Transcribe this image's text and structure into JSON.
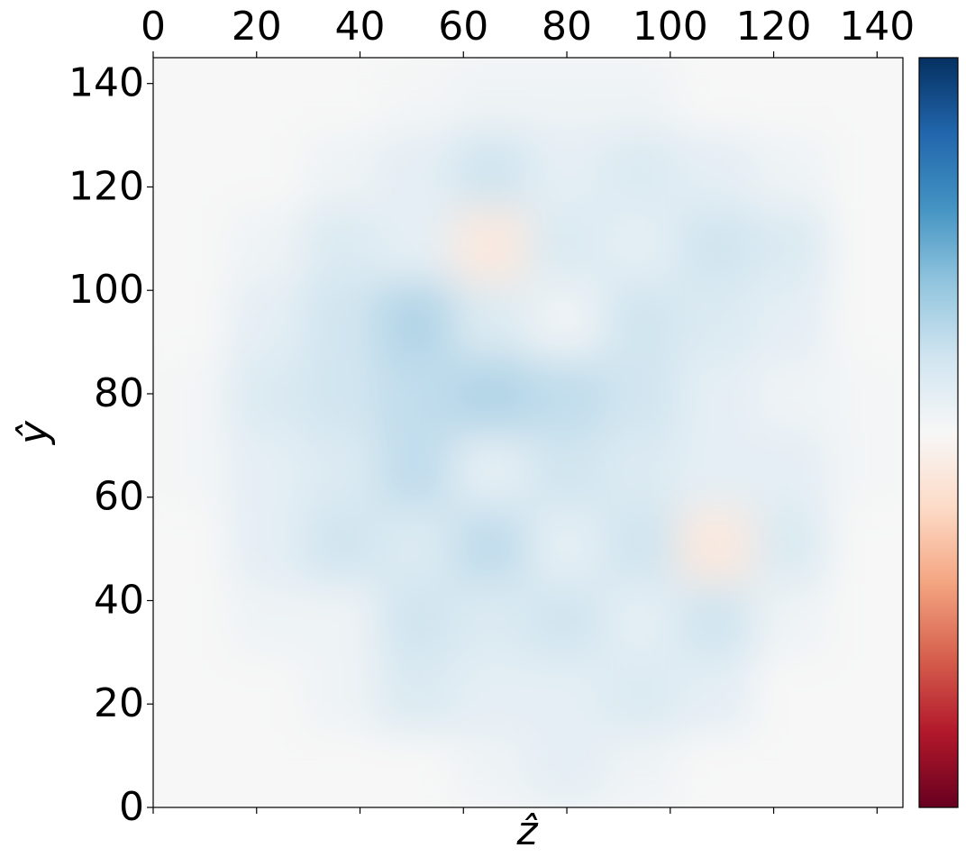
{
  "chart_data": {
    "type": "heatmap",
    "x_label": "ẑ",
    "y_label": "ŷ",
    "xlim": [
      0,
      145
    ],
    "ylim": [
      0,
      145
    ],
    "xticks": [
      0,
      20,
      40,
      60,
      80,
      100,
      120,
      140
    ],
    "yticks": [
      0,
      20,
      40,
      60,
      80,
      100,
      120,
      140
    ],
    "xbins": [
      0,
      14.5,
      29,
      43.5,
      58,
      72.5,
      87,
      101.5,
      116,
      130.5,
      145
    ],
    "ybins": [
      0,
      14.5,
      29,
      43.5,
      58,
      72.5,
      87,
      101.5,
      116,
      130.5,
      145
    ],
    "colormap": "RdBu",
    "zlim": [
      -1,
      1
    ],
    "z": [
      [
        0,
        0,
        0,
        0,
        0.05,
        0.1,
        0.05,
        0,
        0,
        0
      ],
      [
        0,
        0,
        0.05,
        0.15,
        0.1,
        0.1,
        0.15,
        0.1,
        0,
        0
      ],
      [
        0,
        0.05,
        0.05,
        0.2,
        0.15,
        0.2,
        0.1,
        0.2,
        0.05,
        0
      ],
      [
        0,
        0.1,
        0.2,
        0.15,
        0.25,
        0.1,
        0.2,
        -0.1,
        0.15,
        0
      ],
      [
        0.02,
        0.1,
        0.15,
        0.25,
        0.1,
        0.2,
        0.15,
        0.1,
        0.1,
        0.02
      ],
      [
        0.02,
        0.15,
        0.2,
        0.25,
        0.3,
        0.25,
        0.2,
        0.1,
        0.05,
        0.02
      ],
      [
        0,
        0.1,
        0.2,
        0.3,
        0.15,
        0.05,
        0.2,
        0.15,
        0.1,
        0
      ],
      [
        0,
        0.05,
        0.15,
        0.1,
        -0.1,
        0.15,
        0.1,
        0.2,
        0.15,
        0
      ],
      [
        0,
        0,
        0.05,
        0.1,
        0.2,
        0.1,
        0.15,
        0.1,
        0.05,
        0
      ],
      [
        0,
        0,
        0,
        0.02,
        0.05,
        0.05,
        0.05,
        0,
        0,
        0
      ]
    ]
  }
}
